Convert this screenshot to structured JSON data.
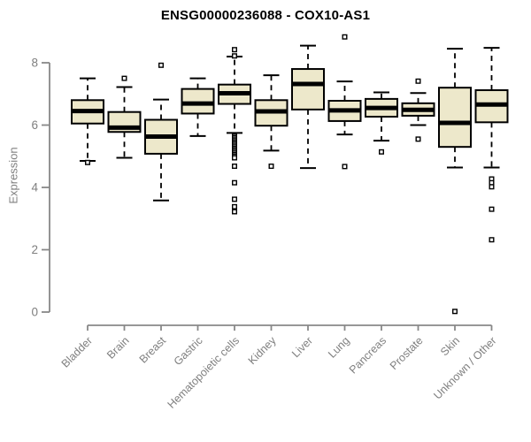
{
  "title": "ENSG00000236088 - COX10-AS1",
  "chart_data": {
    "type": "boxplot",
    "title": "ENSG00000236088 - COX10-AS1",
    "xlabel": "",
    "ylabel": "Expression",
    "ylim": [
      0,
      8.9
    ],
    "yticks": [
      0,
      2,
      4,
      6,
      8
    ],
    "grid": false,
    "legend": "none",
    "colors": {
      "box_fill": "#EDE8CB",
      "box_stroke": "#000000",
      "median": "#000000",
      "axis": "#888888",
      "tick_label": "#7f7f7f",
      "title": "#000000",
      "background": "#ffffff"
    },
    "categories": [
      "Bladder",
      "Brain",
      "Breast",
      "Gastric",
      "Hematopoietic cells",
      "Kidney",
      "Liver",
      "Lung",
      "Pancreas",
      "Prostate",
      "Skin",
      "Unknown / Other"
    ],
    "series": [
      {
        "category": "Bladder",
        "whisker_low": 4.85,
        "q1": 6.05,
        "median": 6.45,
        "q3": 6.8,
        "whisker_high": 7.5,
        "outliers": [
          4.8
        ]
      },
      {
        "category": "Brain",
        "whisker_low": 4.95,
        "q1": 5.78,
        "median": 5.92,
        "q3": 6.42,
        "whisker_high": 7.22,
        "outliers": [
          7.5
        ]
      },
      {
        "category": "Breast",
        "whisker_low": 3.58,
        "q1": 5.08,
        "median": 5.63,
        "q3": 6.17,
        "whisker_high": 6.82,
        "outliers": [
          7.92
        ]
      },
      {
        "category": "Gastric",
        "whisker_low": 5.65,
        "q1": 6.37,
        "median": 6.69,
        "q3": 7.16,
        "whisker_high": 7.5,
        "outliers": []
      },
      {
        "category": "Hematopoietic cells",
        "whisker_low": 5.75,
        "q1": 6.68,
        "median": 7.02,
        "q3": 7.3,
        "whisker_high": 8.2,
        "outliers": [
          8.42,
          8.22,
          5.65,
          5.6,
          5.55,
          5.5,
          5.45,
          5.4,
          5.35,
          5.3,
          5.25,
          5.2,
          5.15,
          5.1,
          5.05,
          5.0,
          4.95,
          4.68,
          4.15,
          3.62,
          3.38,
          3.22
        ]
      },
      {
        "category": "Kidney",
        "whisker_low": 5.18,
        "q1": 5.98,
        "median": 6.44,
        "q3": 6.8,
        "whisker_high": 7.6,
        "outliers": [
          4.68
        ]
      },
      {
        "category": "Liver",
        "whisker_low": 4.62,
        "q1": 6.5,
        "median": 7.32,
        "q3": 7.8,
        "whisker_high": 8.55,
        "outliers": []
      },
      {
        "category": "Lung",
        "whisker_low": 5.7,
        "q1": 6.13,
        "median": 6.47,
        "q3": 6.78,
        "whisker_high": 7.4,
        "outliers": [
          8.83,
          4.67
        ]
      },
      {
        "category": "Pancreas",
        "whisker_low": 5.5,
        "q1": 6.27,
        "median": 6.55,
        "q3": 6.84,
        "whisker_high": 7.05,
        "outliers": [
          5.14
        ]
      },
      {
        "category": "Prostate",
        "whisker_low": 6.0,
        "q1": 6.3,
        "median": 6.49,
        "q3": 6.7,
        "whisker_high": 7.03,
        "outliers": [
          7.41,
          5.55
        ]
      },
      {
        "category": "Skin",
        "whisker_low": 4.64,
        "q1": 5.3,
        "median": 6.07,
        "q3": 7.2,
        "whisker_high": 8.45,
        "outliers": [
          0.02
        ]
      },
      {
        "category": "Unknown / Other",
        "whisker_low": 4.64,
        "q1": 6.09,
        "median": 6.66,
        "q3": 7.12,
        "whisker_high": 8.48,
        "outliers": [
          4.27,
          4.15,
          4.02,
          3.3,
          2.32
        ]
      }
    ]
  }
}
